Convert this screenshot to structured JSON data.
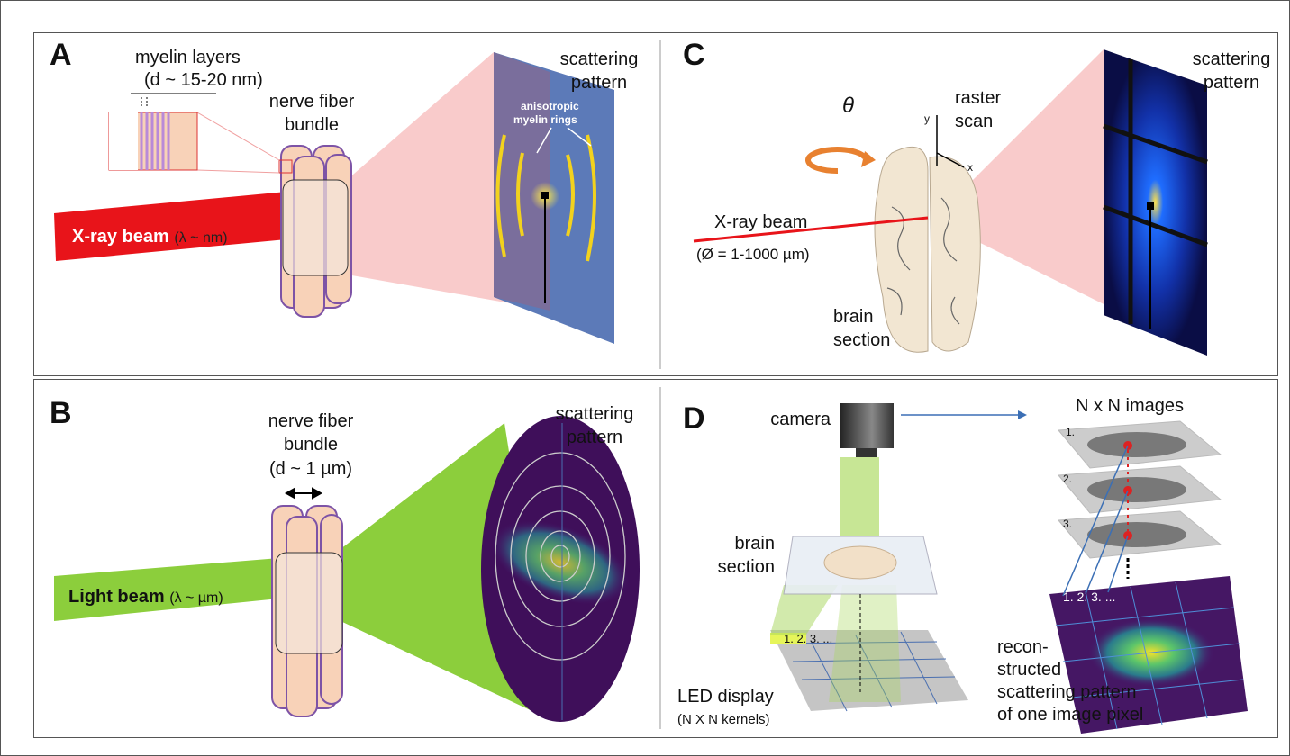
{
  "panels": {
    "a": {
      "label": "A",
      "myelin": [
        "myelin layers",
        "(d ~ 15-20 nm)"
      ],
      "bundle": [
        "nerve fiber",
        "bundle"
      ],
      "pattern": [
        "scattering",
        "pattern"
      ],
      "rings": [
        "anisotropic",
        "myelin rings"
      ],
      "beam": "X-ray beam",
      "beam_note": "(λ ~ nm)"
    },
    "c": {
      "label": "C",
      "theta": "θ",
      "axis_y": "y",
      "axis_x": "x",
      "scan": [
        "raster",
        "scan"
      ],
      "beam": "X-ray beam",
      "beam_note": "(Ø = 1-1000 µm)",
      "section": [
        "brain",
        "section"
      ],
      "pattern": [
        "scattering",
        "pattern"
      ]
    },
    "b": {
      "label": "B",
      "bundle": [
        "nerve fiber",
        "bundle"
      ],
      "diameter": "(d ~ 1 µm)",
      "pattern": [
        "scattering",
        "pattern"
      ],
      "beam": "Light beam",
      "beam_note": "(λ ~ µm)"
    },
    "d": {
      "label": "D",
      "camera": "camera",
      "images": "N x N images",
      "stack": [
        "1.",
        "2.",
        "3."
      ],
      "section": [
        "brain",
        "section"
      ],
      "led": "LED display",
      "led_note": "(N X N kernels)",
      "led_steps": "1.  2.  3. ...",
      "grid_steps": "1.  2.  3. ...",
      "recon": [
        "recon-",
        "structed",
        "scattering pattern",
        "of one image pixel"
      ]
    }
  }
}
